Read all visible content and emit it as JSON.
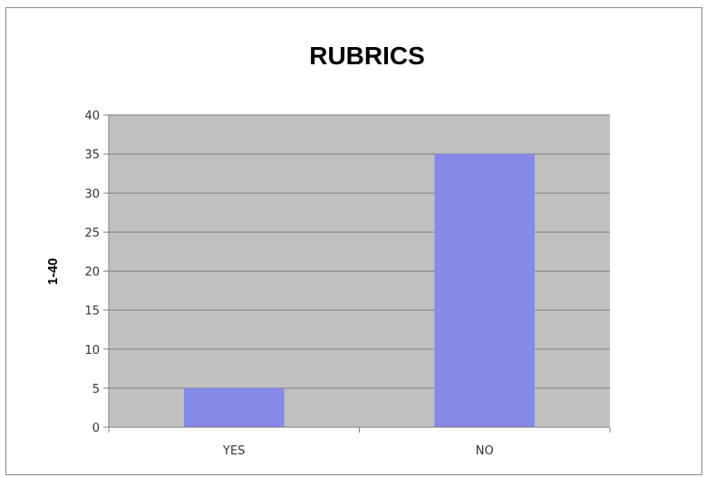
{
  "chart_data": {
    "type": "bar",
    "title": "RUBRICS",
    "xlabel": "",
    "ylabel": "1-40",
    "categories": [
      "YES",
      "NO"
    ],
    "values": [
      5,
      35
    ],
    "ylim": [
      0,
      40
    ],
    "yticks": [
      0,
      5,
      10,
      15,
      20,
      25,
      30,
      35,
      40
    ],
    "grid": true,
    "legend": "none",
    "colors": {
      "bar": "#8589E8",
      "plot_background": "#C0C0C0",
      "gridline": "#7F7F7F",
      "axis": "#808080"
    }
  }
}
